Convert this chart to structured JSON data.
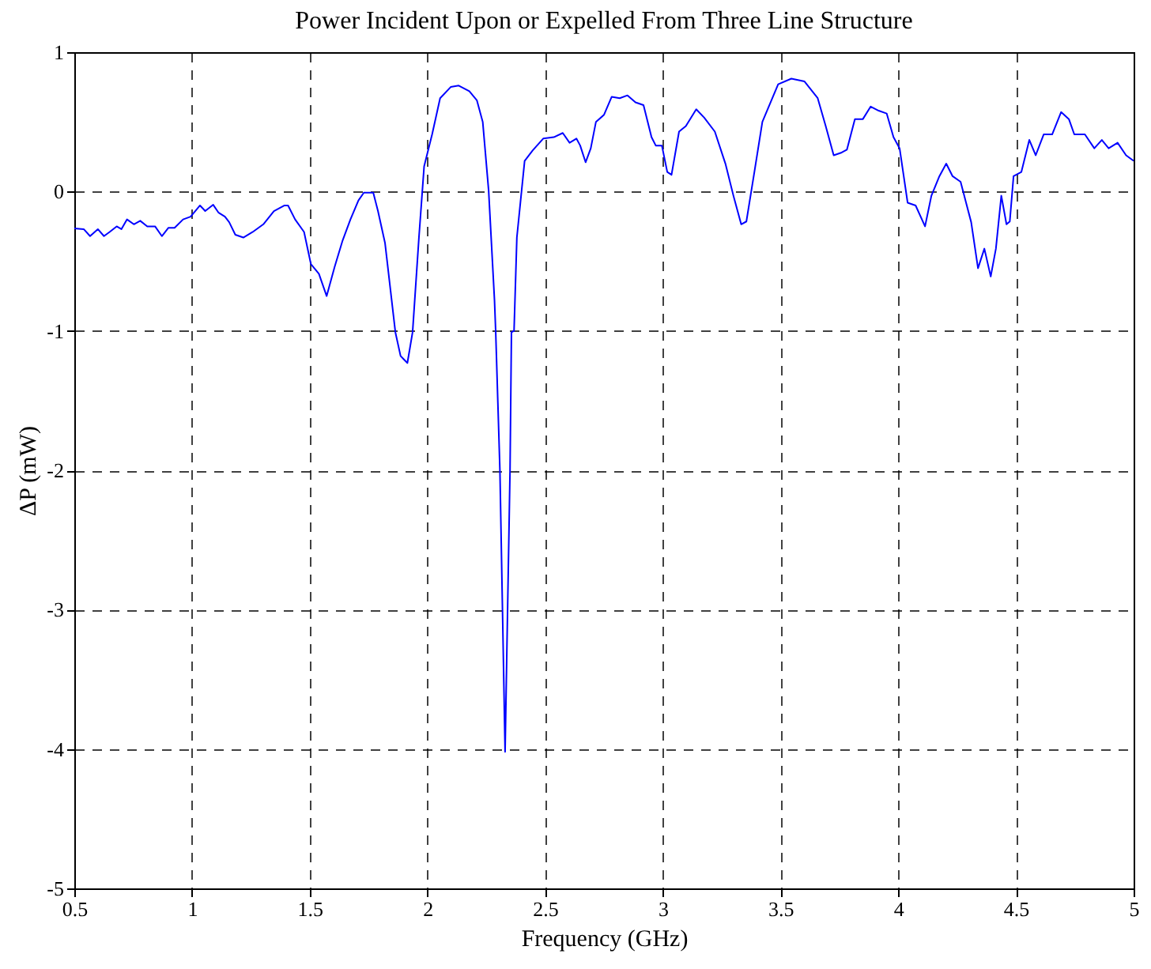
{
  "chart_data": {
    "type": "line",
    "title": "Power Incident Upon or Expelled From Three Line Structure",
    "xlabel": "Frequency (GHz)",
    "ylabel": "ΔP (mW)",
    "x": [
      0.5,
      0.54,
      0.567,
      0.6,
      0.626,
      0.65,
      0.68,
      0.7,
      0.724,
      0.753,
      0.78,
      0.81,
      0.843,
      0.872,
      0.9,
      0.926,
      0.962,
      0.994,
      1.034,
      1.056,
      1.09,
      1.112,
      1.14,
      1.158,
      1.184,
      1.218,
      1.258,
      1.303,
      1.348,
      1.393,
      1.408,
      1.438,
      1.476,
      1.505,
      1.539,
      1.572,
      1.606,
      1.64,
      1.673,
      1.707,
      1.73,
      1.77,
      1.79,
      1.82,
      1.864,
      1.886,
      1.915,
      1.937,
      1.964,
      1.986,
      2.02,
      2.054,
      2.099,
      2.133,
      2.178,
      2.21,
      2.235,
      2.26,
      2.285,
      2.29,
      2.308,
      2.33,
      2.351,
      2.357,
      2.368,
      2.38,
      2.413,
      2.447,
      2.492,
      2.537,
      2.575,
      2.604,
      2.633,
      2.649,
      2.672,
      2.694,
      2.716,
      2.75,
      2.783,
      2.817,
      2.85,
      2.884,
      2.918,
      2.952,
      2.97,
      2.996,
      3.019,
      3.037,
      3.069,
      3.098,
      3.142,
      3.176,
      3.221,
      3.266,
      3.3,
      3.333,
      3.355,
      3.389,
      3.423,
      3.49,
      3.546,
      3.602,
      3.658,
      3.692,
      3.726,
      3.76,
      3.782,
      3.816,
      3.85,
      3.883,
      3.917,
      3.951,
      3.98,
      4.006,
      4.04,
      4.074,
      4.114,
      4.141,
      4.175,
      4.204,
      4.231,
      4.265,
      4.31,
      4.339,
      4.366,
      4.393,
      4.415,
      4.438,
      4.46,
      4.474,
      4.49,
      4.523,
      4.557,
      4.584,
      4.618,
      4.654,
      4.692,
      4.725,
      4.748,
      4.793,
      4.833,
      4.865,
      4.894,
      4.932,
      4.968,
      5.0
    ],
    "series": [
      {
        "color": "#0000ff",
        "values": [
          -0.265,
          -0.27,
          -0.32,
          -0.27,
          -0.32,
          -0.29,
          -0.25,
          -0.27,
          -0.2,
          -0.235,
          -0.21,
          -0.25,
          -0.25,
          -0.32,
          -0.26,
          -0.26,
          -0.2,
          -0.18,
          -0.1,
          -0.14,
          -0.095,
          -0.15,
          -0.18,
          -0.22,
          -0.31,
          -0.33,
          -0.29,
          -0.235,
          -0.14,
          -0.1,
          -0.1,
          -0.2,
          -0.29,
          -0.52,
          -0.59,
          -0.75,
          -0.54,
          -0.35,
          -0.2,
          -0.064,
          -0.008,
          -0.008,
          -0.14,
          -0.37,
          -1.01,
          -1.18,
          -1.23,
          -1.01,
          -0.33,
          0.18,
          0.41,
          0.67,
          0.75,
          0.76,
          0.72,
          0.655,
          0.5,
          0.01,
          -0.78,
          -1,
          -2,
          -4.02,
          -2,
          -1.01,
          -1,
          -0.33,
          0.22,
          0.295,
          0.38,
          0.39,
          0.42,
          0.35,
          0.38,
          0.33,
          0.21,
          0.31,
          0.5,
          0.55,
          0.68,
          0.67,
          0.69,
          0.64,
          0.62,
          0.39,
          0.33,
          0.33,
          0.14,
          0.12,
          0.43,
          0.47,
          0.59,
          0.53,
          0.43,
          0.2,
          -0.03,
          -0.235,
          -0.215,
          0.14,
          0.5,
          0.77,
          0.81,
          0.79,
          0.67,
          0.47,
          0.26,
          0.28,
          0.3,
          0.52,
          0.52,
          0.61,
          0.58,
          0.56,
          0.39,
          0.31,
          -0.08,
          -0.1,
          -0.25,
          -0.03,
          0.11,
          0.2,
          0.11,
          0.07,
          -0.22,
          -0.55,
          -0.41,
          -0.61,
          -0.41,
          -0.03,
          -0.235,
          -0.215,
          0.11,
          0.14,
          0.37,
          0.26,
          0.41,
          0.41,
          0.57,
          0.52,
          0.41,
          0.41,
          0.31,
          0.37,
          0.31,
          0.35,
          0.26,
          0.22
        ]
      }
    ],
    "xlim": [
      0.5,
      5
    ],
    "xticks": [
      0.5,
      1,
      1.5,
      2,
      2.5,
      3,
      3.5,
      4,
      4.5,
      5
    ],
    "ylim": [
      -5,
      1
    ],
    "yticks": [
      -5,
      -4,
      -3,
      -2,
      -1,
      0,
      1
    ],
    "grid": true
  }
}
